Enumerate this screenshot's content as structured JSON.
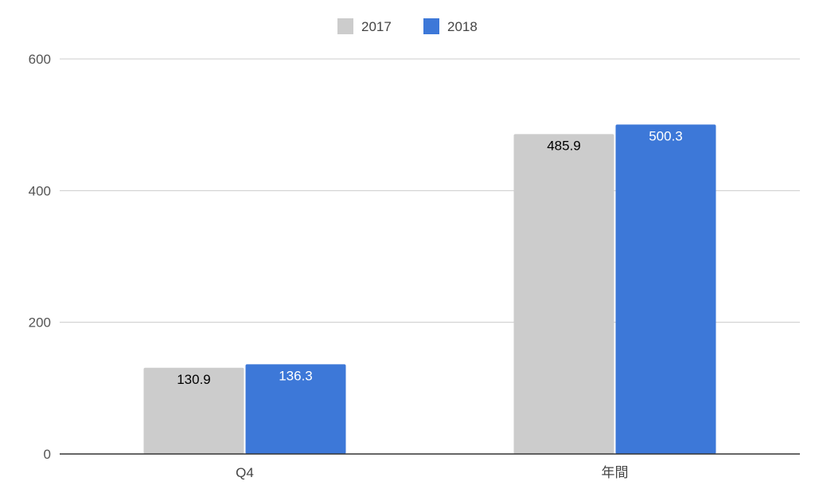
{
  "chart_data": {
    "type": "bar",
    "categories": [
      "Q4",
      "年間"
    ],
    "series": [
      {
        "name": "2017",
        "values": [
          130.9,
          485.9
        ],
        "color": "#cccccc",
        "label_color": "#000000",
        "labels": [
          "130.9",
          "485.9"
        ]
      },
      {
        "name": "2018",
        "values": [
          136.3,
          500.3
        ],
        "color": "#3d78d8",
        "label_color": "#ffffff",
        "labels": [
          "136.3",
          "500.3"
        ]
      }
    ],
    "ylim": [
      0,
      600
    ],
    "yticks": [
      "0",
      "200",
      "400",
      "600"
    ],
    "grid": true,
    "legend": "top-center",
    "title": "",
    "xlabel": "",
    "ylabel": ""
  }
}
